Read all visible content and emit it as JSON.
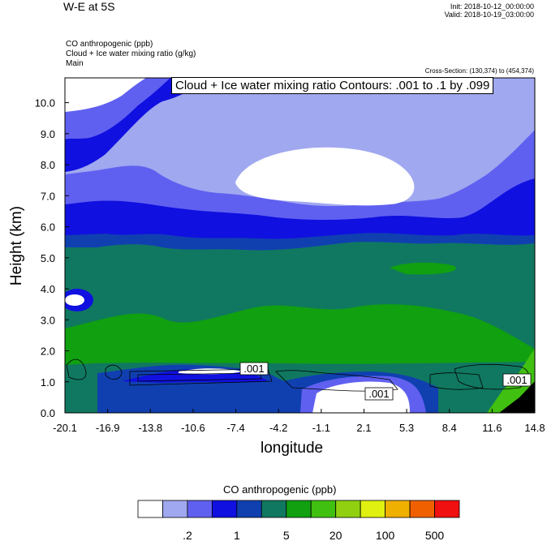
{
  "header": {
    "title": "W-E at 5S",
    "init": "Init: 2018-10-12_00:00:00",
    "valid": "Valid: 2018-10-19_03:00:00",
    "variables": [
      "CO anthropogenic   (ppb)",
      "Cloud + Ice water mixing ratio   (g/kg)",
      "Main"
    ],
    "cross_section": "Cross-Section: (130,374) to (454,374)"
  },
  "contour_label": "Cloud + Ice water mixing ratio Contours: .001 to .1 by .099",
  "colorbar": {
    "title": "CO anthropogenic  (ppb)",
    "colors": [
      "#ffffff",
      "#a0a8f0",
      "#6060f0",
      "#1010e0",
      "#1040b0",
      "#107860",
      "#10a010",
      "#40c010",
      "#90d010",
      "#e0f010",
      "#f0b000",
      "#f06000",
      "#f01010"
    ],
    "tick_labels": [
      ".2",
      "1",
      "5",
      "20",
      "100",
      "500"
    ]
  },
  "chart_data": {
    "type": "heatmap",
    "xlabel": "longitude",
    "ylabel": "Height (km)",
    "xticks": [
      "-20.1",
      "-16.9",
      "-13.8",
      "-10.6",
      "-7.4",
      "-4.2",
      "-1.1",
      "2.1",
      "5.3",
      "8.4",
      "11.6",
      "14.8"
    ],
    "yticks": [
      "0.0",
      "1.0",
      "2.0",
      "3.0",
      "4.0",
      "5.0",
      "6.0",
      "7.0",
      "8.0",
      "9.0",
      "10.0"
    ],
    "xlim": [
      -20.1,
      14.8
    ],
    "ylim": [
      0.0,
      10.8
    ],
    "contour_labels": [
      ".001",
      ".001",
      ".001"
    ],
    "field_levels_by_height": [
      {
        "height_km": 0.5,
        "level": "1-2"
      },
      {
        "height_km": 1.5,
        "level": "5"
      },
      {
        "height_km": 3.0,
        "level": "10-20"
      },
      {
        "height_km": 5.0,
        "level": "5"
      },
      {
        "height_km": 6.5,
        "level": "1-2"
      },
      {
        "height_km": 8.0,
        "level": "0.2-0.5"
      },
      {
        "height_km": 9.5,
        "level": "1"
      }
    ]
  }
}
